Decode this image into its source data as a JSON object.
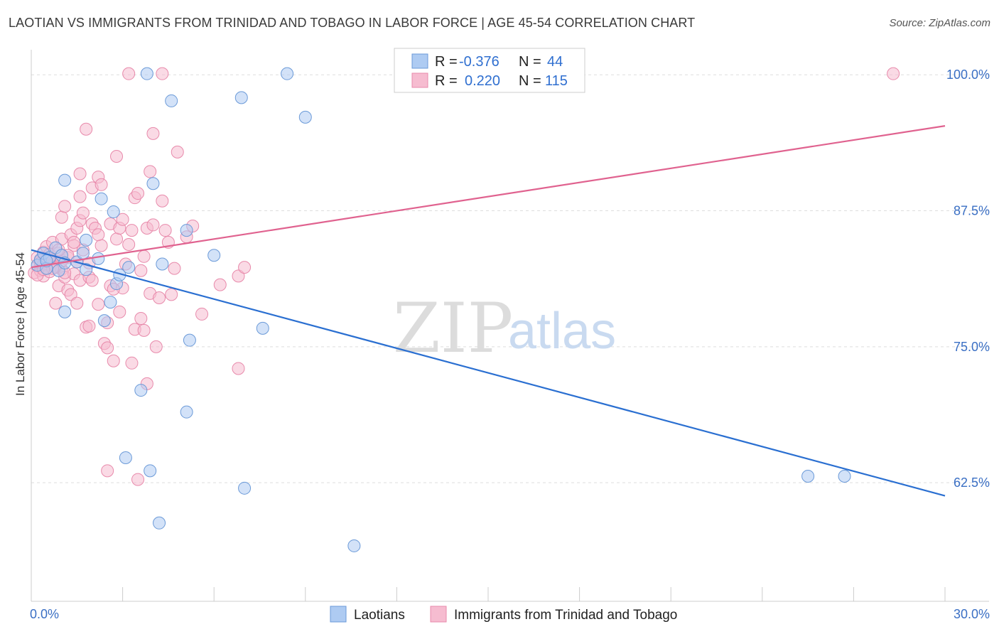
{
  "title": "LAOTIAN VS IMMIGRANTS FROM TRINIDAD AND TOBAGO IN LABOR FORCE | AGE 45-54 CORRELATION CHART",
  "source": "Source: ZipAtlas.com",
  "watermark": {
    "zip": "ZIP",
    "atlas": "atlas"
  },
  "colors": {
    "blue_fill": "#aecbf2",
    "blue_stroke": "#6b9ad8",
    "blue_line": "#2a6fd1",
    "pink_fill": "#f6bcd0",
    "pink_stroke": "#e88aab",
    "pink_line": "#e0628f",
    "grid": "#dddddd",
    "tick_text": "#3a6fc4"
  },
  "legend": {
    "rows": [
      {
        "r_label": "R =",
        "r_value": "-0.376",
        "n_label": "N =",
        "n_value": "44",
        "series": "blue"
      },
      {
        "r_label": "R =",
        "r_value": "0.220",
        "n_label": "N =",
        "n_value": "115",
        "series": "pink"
      }
    ]
  },
  "chart_data": {
    "type": "scatter",
    "ylabel": "In Labor Force | Age 45-54",
    "xlim": [
      0,
      30
    ],
    "ylim": [
      51.6,
      102.3
    ],
    "y_ticks": [
      100.0,
      87.5,
      75.0,
      62.5
    ],
    "y_tick_labels": [
      "100.0%",
      "87.5%",
      "75.0%",
      "62.5%"
    ],
    "x_tick_labels": [
      {
        "x": 0,
        "label": "0.0%"
      },
      {
        "x": 30,
        "label": "30.0%"
      }
    ],
    "x_minor_ticks": [
      0,
      3,
      6,
      9,
      12,
      15,
      18,
      21,
      24,
      27,
      30
    ],
    "series": [
      {
        "name": "Laotians",
        "color": "blue",
        "trend": {
          "x0": 0,
          "y0": 83.9,
          "x1": 30,
          "y1": 61.3
        },
        "points": [
          [
            0.2,
            82.5
          ],
          [
            0.3,
            83.0
          ],
          [
            0.4,
            83.6
          ],
          [
            0.5,
            82.2
          ],
          [
            0.6,
            83.2
          ],
          [
            0.8,
            84.1
          ],
          [
            0.9,
            82.0
          ],
          [
            1.0,
            83.4
          ],
          [
            1.1,
            78.2
          ],
          [
            1.1,
            82.7
          ],
          [
            1.1,
            90.3
          ],
          [
            1.5,
            82.8
          ],
          [
            1.7,
            83.6
          ],
          [
            1.8,
            84.8
          ],
          [
            1.8,
            82.1
          ],
          [
            2.2,
            83.1
          ],
          [
            2.3,
            88.6
          ],
          [
            2.4,
            77.4
          ],
          [
            2.6,
            79.1
          ],
          [
            2.7,
            87.4
          ],
          [
            2.8,
            80.8
          ],
          [
            2.9,
            81.6
          ],
          [
            3.2,
            82.3
          ],
          [
            3.1,
            64.8
          ],
          [
            3.6,
            71.0
          ],
          [
            3.8,
            100.1
          ],
          [
            3.9,
            63.6
          ],
          [
            4.0,
            90.0
          ],
          [
            4.2,
            58.8
          ],
          [
            4.3,
            82.6
          ],
          [
            4.6,
            97.6
          ],
          [
            5.1,
            85.7
          ],
          [
            5.2,
            75.6
          ],
          [
            5.1,
            69.0
          ],
          [
            6.0,
            83.4
          ],
          [
            6.9,
            97.9
          ],
          [
            7.0,
            62.0
          ],
          [
            7.6,
            76.7
          ],
          [
            8.4,
            100.1
          ],
          [
            9.0,
            96.1
          ],
          [
            10.6,
            56.7
          ],
          [
            25.5,
            63.1
          ],
          [
            26.7,
            63.1
          ],
          [
            0.5,
            82.9
          ]
        ]
      },
      {
        "name": "Immigrants from Trinidad and Tobago",
        "color": "pink",
        "trend": {
          "x0": 0,
          "y0": 82.3,
          "x1": 30,
          "y1": 95.3
        },
        "points": [
          [
            0.1,
            81.8
          ],
          [
            0.2,
            82.4
          ],
          [
            0.2,
            83.2
          ],
          [
            0.3,
            82.0
          ],
          [
            0.3,
            82.9
          ],
          [
            0.4,
            81.5
          ],
          [
            0.4,
            83.7
          ],
          [
            0.5,
            82.2
          ],
          [
            0.5,
            84.2
          ],
          [
            0.6,
            82.6
          ],
          [
            0.6,
            81.9
          ],
          [
            0.7,
            83.0
          ],
          [
            0.7,
            84.6
          ],
          [
            0.8,
            82.4
          ],
          [
            0.8,
            79.0
          ],
          [
            0.9,
            83.6
          ],
          [
            0.9,
            80.6
          ],
          [
            1.0,
            82.1
          ],
          [
            1.0,
            86.9
          ],
          [
            1.0,
            84.9
          ],
          [
            1.1,
            81.4
          ],
          [
            1.1,
            87.9
          ],
          [
            1.2,
            83.2
          ],
          [
            1.2,
            80.2
          ],
          [
            1.3,
            85.3
          ],
          [
            1.3,
            79.8
          ],
          [
            1.4,
            81.7
          ],
          [
            1.4,
            84.3
          ],
          [
            1.5,
            79.0
          ],
          [
            1.5,
            85.9
          ],
          [
            1.6,
            81.1
          ],
          [
            1.6,
            86.6
          ],
          [
            1.6,
            90.9
          ],
          [
            1.7,
            83.9
          ],
          [
            1.7,
            87.3
          ],
          [
            1.8,
            76.8
          ],
          [
            1.8,
            95.0
          ],
          [
            1.9,
            82.7
          ],
          [
            1.9,
            81.4
          ],
          [
            2.0,
            86.3
          ],
          [
            2.0,
            89.6
          ],
          [
            2.1,
            85.9
          ],
          [
            2.2,
            90.6
          ],
          [
            2.2,
            78.9
          ],
          [
            2.3,
            84.3
          ],
          [
            2.3,
            89.9
          ],
          [
            2.4,
            75.3
          ],
          [
            2.5,
            74.9
          ],
          [
            2.5,
            77.2
          ],
          [
            2.5,
            63.6
          ],
          [
            2.6,
            86.3
          ],
          [
            2.6,
            80.6
          ],
          [
            2.7,
            73.7
          ],
          [
            2.8,
            92.5
          ],
          [
            2.8,
            84.9
          ],
          [
            2.9,
            85.9
          ],
          [
            2.9,
            78.2
          ],
          [
            3.0,
            86.7
          ],
          [
            3.0,
            80.4
          ],
          [
            3.1,
            82.6
          ],
          [
            3.2,
            84.4
          ],
          [
            3.3,
            85.7
          ],
          [
            3.3,
            73.5
          ],
          [
            3.4,
            76.6
          ],
          [
            3.4,
            88.7
          ],
          [
            3.5,
            62.8
          ],
          [
            3.5,
            89.1
          ],
          [
            3.6,
            77.6
          ],
          [
            3.7,
            83.3
          ],
          [
            3.7,
            76.5
          ],
          [
            3.8,
            85.9
          ],
          [
            3.8,
            71.6
          ],
          [
            3.9,
            91.1
          ],
          [
            3.9,
            79.9
          ],
          [
            4.0,
            86.2
          ],
          [
            4.0,
            94.6
          ],
          [
            4.1,
            75.0
          ],
          [
            4.2,
            79.5
          ],
          [
            4.3,
            88.4
          ],
          [
            4.3,
            100.1
          ],
          [
            4.4,
            85.7
          ],
          [
            4.5,
            84.6
          ],
          [
            4.6,
            79.8
          ],
          [
            4.7,
            82.2
          ],
          [
            4.8,
            92.9
          ],
          [
            5.1,
            85.1
          ],
          [
            5.3,
            86.1
          ],
          [
            5.6,
            78.0
          ],
          [
            6.2,
            80.7
          ],
          [
            6.8,
            73.0
          ],
          [
            6.8,
            81.5
          ],
          [
            7.0,
            82.3
          ],
          [
            3.2,
            100.1
          ],
          [
            28.3,
            100.1
          ],
          [
            0.3,
            82.7
          ],
          [
            0.6,
            83.5
          ],
          [
            1.0,
            82.9
          ],
          [
            1.2,
            83.4
          ],
          [
            0.8,
            82.3
          ],
          [
            1.4,
            84.6
          ],
          [
            2.0,
            81.1
          ],
          [
            0.4,
            82.6
          ],
          [
            0.7,
            82.2
          ],
          [
            1.6,
            88.8
          ],
          [
            2.2,
            85.3
          ],
          [
            3.6,
            82.0
          ],
          [
            1.9,
            76.9
          ],
          [
            0.9,
            83.9
          ],
          [
            1.5,
            82.8
          ],
          [
            2.7,
            80.3
          ],
          [
            0.5,
            83.1
          ],
          [
            0.2,
            81.6
          ],
          [
            0.4,
            82.1
          ],
          [
            0.6,
            83.1
          ],
          [
            1.1,
            81.8
          ]
        ]
      }
    ]
  },
  "bottom_legend": [
    {
      "label": "Laotians",
      "series": "blue"
    },
    {
      "label": "Immigrants from Trinidad and Tobago",
      "series": "pink"
    }
  ]
}
